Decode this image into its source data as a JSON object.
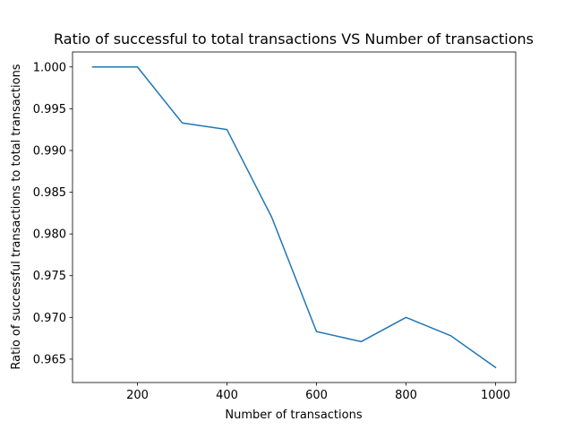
{
  "chart_data": {
    "type": "line",
    "title": "Ratio of successful to total transactions VS Number of transactions",
    "xlabel": "Number of transactions",
    "ylabel": "Ratio of successful transactions to total transactions",
    "xlim": [
      55,
      1045
    ],
    "ylim": [
      0.9622,
      1.0018
    ],
    "xticks": [
      200,
      400,
      600,
      800,
      1000
    ],
    "xtick_labels": [
      "200",
      "400",
      "600",
      "800",
      "1000"
    ],
    "yticks": [
      0.965,
      0.97,
      0.975,
      0.98,
      0.985,
      0.99,
      0.995,
      1.0
    ],
    "ytick_labels": [
      "0.965",
      "0.970",
      "0.975",
      "0.980",
      "0.985",
      "0.990",
      "0.995",
      "1.000"
    ],
    "grid": false,
    "series": [
      {
        "color": "#1f77b4",
        "x": [
          100,
          200,
          300,
          400,
          500,
          600,
          700,
          800,
          900,
          1000
        ],
        "y": [
          1.0,
          1.0,
          0.9933,
          0.9925,
          0.982,
          0.9683,
          0.9671,
          0.97,
          0.9678,
          0.964
        ]
      }
    ]
  }
}
